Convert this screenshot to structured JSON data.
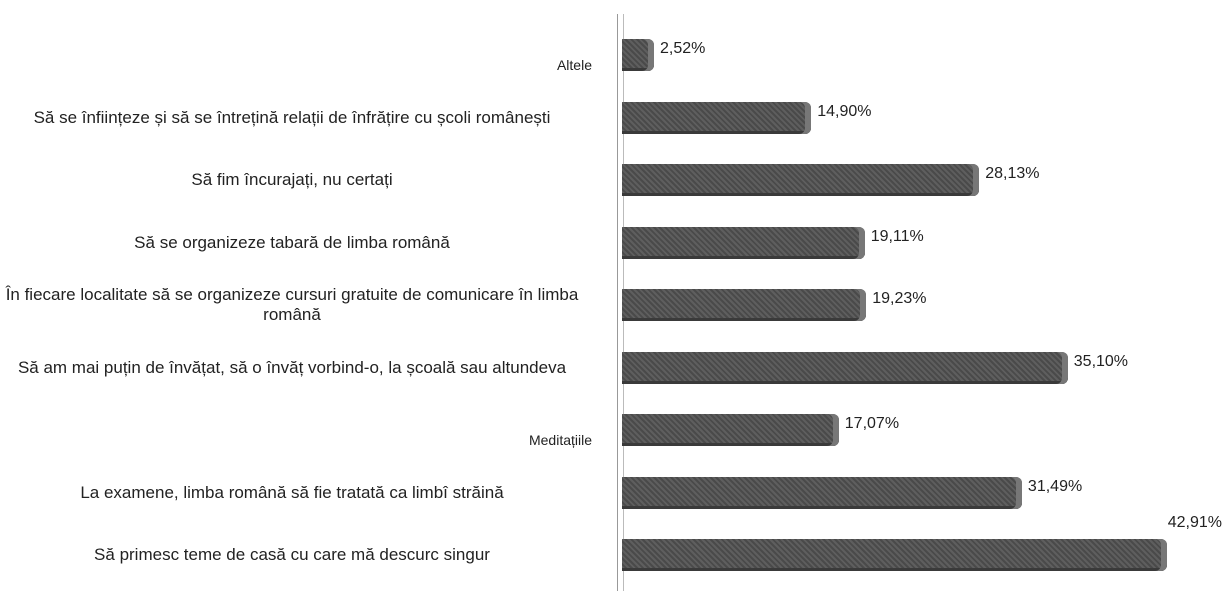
{
  "chart_data": {
    "type": "bar",
    "orientation": "horizontal",
    "categories": [
      "Altele",
      "Să se înființeze și să se întrețină relații de înfrățire cu școli românești",
      "Să fim încurajați, nu certați",
      "Să se organizeze tabară de limba română",
      "În fiecare localitate să se organizeze cursuri gratuite de comunicare în limba română",
      "Să am mai puțin de învățat, să o învăț vorbind-o, la școală sau altundeva",
      "Meditațiile",
      "La examene, limba română să fie tratată ca limbî străină",
      "Să primesc teme de casă cu care mă descurc singur"
    ],
    "values": [
      2.52,
      14.9,
      28.13,
      19.11,
      19.23,
      35.1,
      17.07,
      31.49,
      42.91
    ],
    "value_labels": [
      "2,52%",
      "14,90%",
      "28,13%",
      "19,11%",
      "19,23%",
      "35,10%",
      "17,07%",
      "31,49%",
      "42,91%"
    ],
    "color": "#555555"
  }
}
